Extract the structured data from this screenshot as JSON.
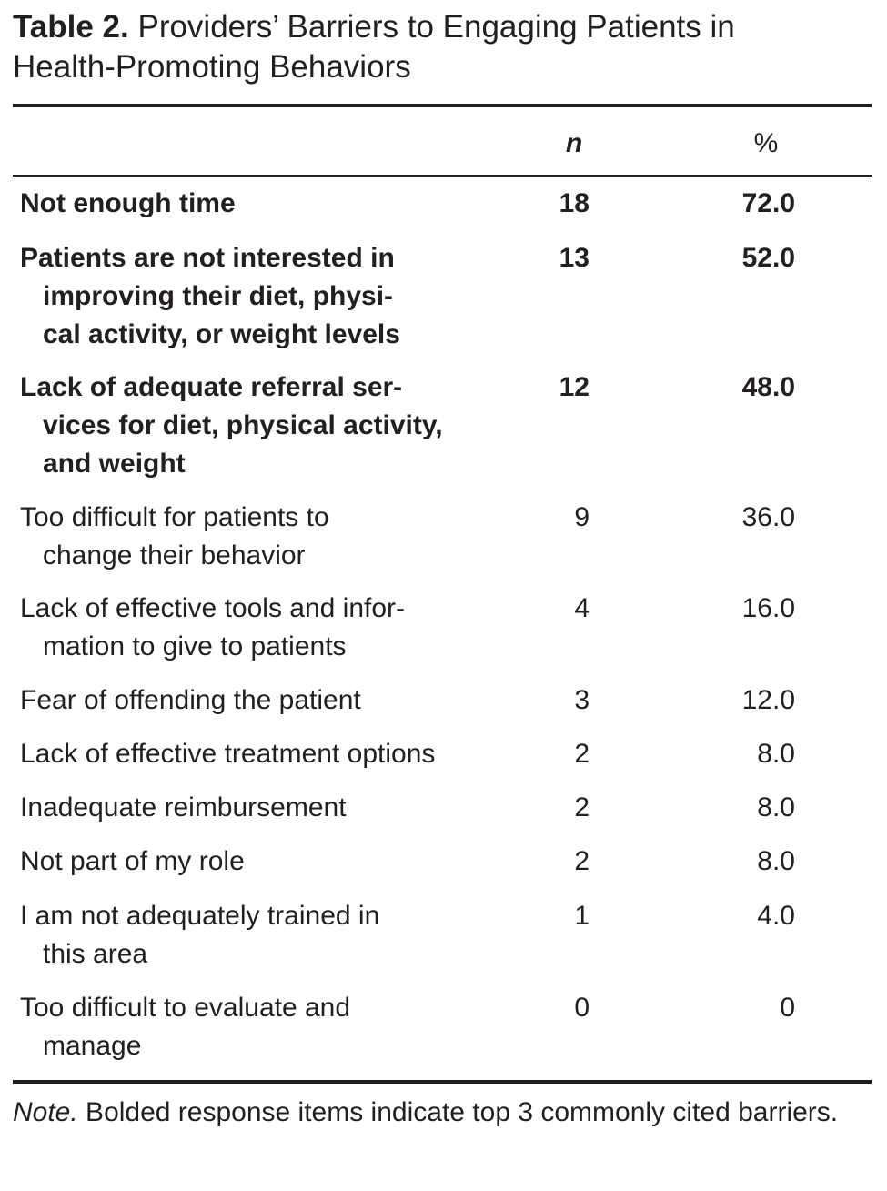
{
  "caption": {
    "label": "Table 2.",
    "line1": "Providers’ Barriers to Engaging Patients in",
    "line2": "Health-Promoting Behaviors"
  },
  "columns": {
    "n": "n",
    "percent": "%"
  },
  "rows": [
    {
      "lines": [
        "Not enough time"
      ],
      "n": "18",
      "percent": "72.0",
      "bold": true
    },
    {
      "lines": [
        "Patients are not interested in",
        "improving their diet, physi-",
        "cal activity, or weight levels"
      ],
      "n": "13",
      "percent": "52.0",
      "bold": true
    },
    {
      "lines": [
        "Lack of adequate referral ser-",
        "vices for diet, physical activity,",
        "and weight"
      ],
      "n": "12",
      "percent": "48.0",
      "bold": true
    },
    {
      "lines": [
        "Too difficult for patients to",
        "change their behavior"
      ],
      "n": "9",
      "percent": "36.0",
      "bold": false
    },
    {
      "lines": [
        "Lack of effective tools and infor-",
        "mation to give to patients"
      ],
      "n": "4",
      "percent": "16.0",
      "bold": false
    },
    {
      "lines": [
        "Fear of offending the patient"
      ],
      "n": "3",
      "percent": "12.0",
      "bold": false
    },
    {
      "lines": [
        "Lack of effective treatment options"
      ],
      "n": "2",
      "percent": "8.0",
      "bold": false
    },
    {
      "lines": [
        "Inadequate reimbursement"
      ],
      "n": "2",
      "percent": "8.0",
      "bold": false
    },
    {
      "lines": [
        "Not part of my role"
      ],
      "n": "2",
      "percent": "8.0",
      "bold": false
    },
    {
      "lines": [
        "I am not adequately trained in",
        "this area"
      ],
      "n": "1",
      "percent": "4.0",
      "bold": false
    },
    {
      "lines": [
        "Too difficult to evaluate and",
        "manage"
      ],
      "n": "0",
      "percent": "0",
      "bold": false
    }
  ],
  "note": {
    "label": "Note.",
    "text": " Bolded response items indicate top 3 commonly cited barriers."
  }
}
